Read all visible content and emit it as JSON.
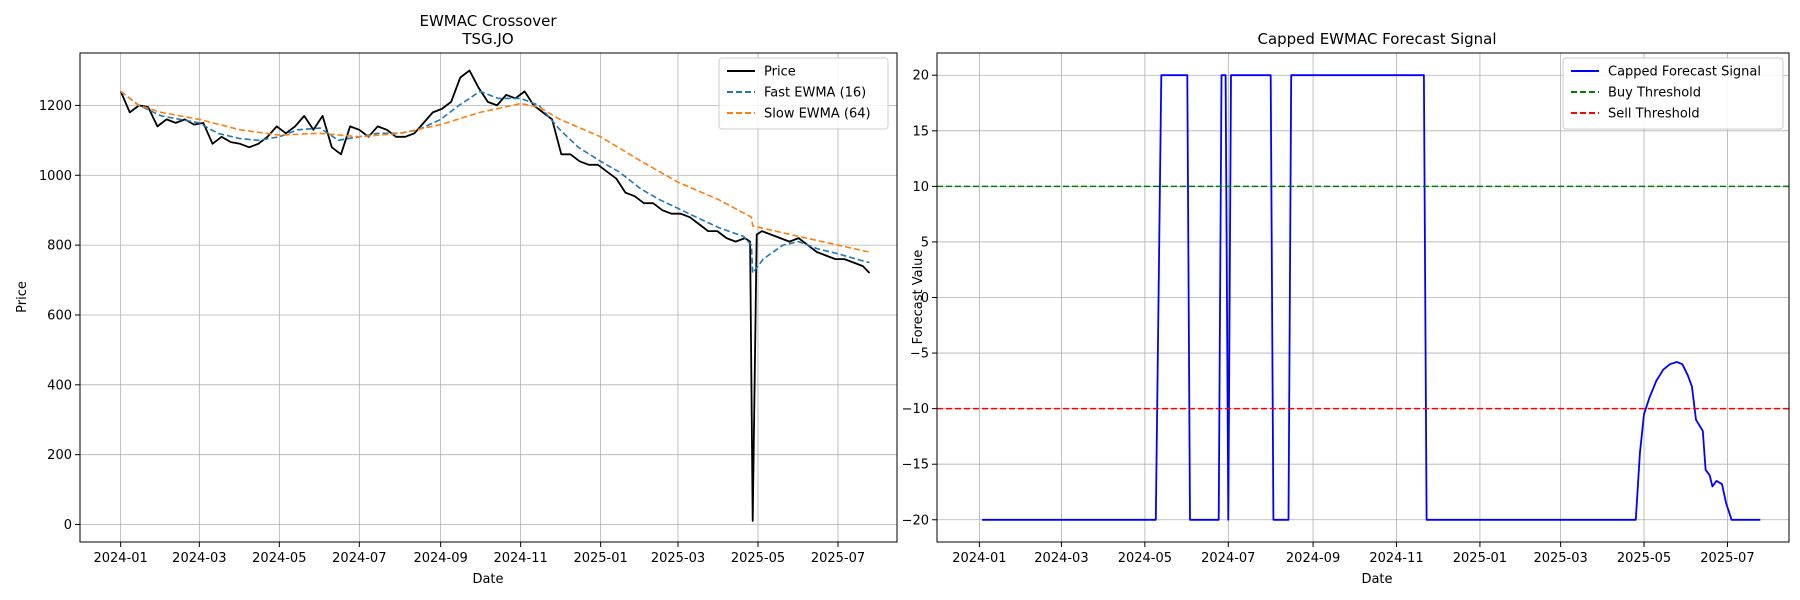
{
  "chart_data": [
    {
      "type": "line",
      "title": "EWMAC Crossover",
      "subtitle": "TSG.JO",
      "xlabel": "Date",
      "ylabel": "Price",
      "xlim": [
        "2023-12-01",
        "2025-08-15"
      ],
      "ylim": [
        -50,
        1350
      ],
      "grid": true,
      "legend": "top-right",
      "x_ticks": [
        "2024-01",
        "2024-03",
        "2024-05",
        "2024-07",
        "2024-09",
        "2024-11",
        "2025-01",
        "2025-03",
        "2025-05",
        "2025-07"
      ],
      "y_ticks": [
        0,
        200,
        400,
        600,
        800,
        1000,
        1200
      ],
      "series": [
        {
          "name": "Price",
          "color": "#000000",
          "dash": "solid",
          "points": [
            [
              "2024-01-01",
              1240
            ],
            [
              "2024-01-08",
              1180
            ],
            [
              "2024-01-15",
              1200
            ],
            [
              "2024-01-22",
              1195
            ],
            [
              "2024-01-29",
              1140
            ],
            [
              "2024-02-05",
              1160
            ],
            [
              "2024-02-12",
              1150
            ],
            [
              "2024-02-19",
              1160
            ],
            [
              "2024-02-26",
              1145
            ],
            [
              "2024-03-04",
              1150
            ],
            [
              "2024-03-11",
              1090
            ],
            [
              "2024-03-18",
              1110
            ],
            [
              "2024-03-25",
              1095
            ],
            [
              "2024-04-01",
              1090
            ],
            [
              "2024-04-08",
              1080
            ],
            [
              "2024-04-15",
              1090
            ],
            [
              "2024-04-22",
              1110
            ],
            [
              "2024-04-29",
              1140
            ],
            [
              "2024-05-06",
              1120
            ],
            [
              "2024-05-13",
              1140
            ],
            [
              "2024-05-20",
              1170
            ],
            [
              "2024-05-27",
              1130
            ],
            [
              "2024-06-03",
              1170
            ],
            [
              "2024-06-10",
              1080
            ],
            [
              "2024-06-17",
              1060
            ],
            [
              "2024-06-24",
              1140
            ],
            [
              "2024-07-01",
              1130
            ],
            [
              "2024-07-08",
              1110
            ],
            [
              "2024-07-15",
              1140
            ],
            [
              "2024-07-22",
              1130
            ],
            [
              "2024-07-29",
              1110
            ],
            [
              "2024-08-05",
              1110
            ],
            [
              "2024-08-12",
              1120
            ],
            [
              "2024-08-19",
              1150
            ],
            [
              "2024-08-26",
              1180
            ],
            [
              "2024-09-02",
              1190
            ],
            [
              "2024-09-09",
              1210
            ],
            [
              "2024-09-16",
              1280
            ],
            [
              "2024-09-23",
              1300
            ],
            [
              "2024-09-30",
              1250
            ],
            [
              "2024-10-07",
              1210
            ],
            [
              "2024-10-14",
              1200
            ],
            [
              "2024-10-21",
              1230
            ],
            [
              "2024-10-28",
              1220
            ],
            [
              "2024-11-04",
              1240
            ],
            [
              "2024-11-11",
              1200
            ],
            [
              "2024-11-18",
              1180
            ],
            [
              "2024-11-25",
              1160
            ],
            [
              "2024-12-02",
              1060
            ],
            [
              "2024-12-09",
              1060
            ],
            [
              "2024-12-16",
              1040
            ],
            [
              "2024-12-23",
              1030
            ],
            [
              "2024-12-30",
              1030
            ],
            [
              "2025-01-06",
              1010
            ],
            [
              "2025-01-13",
              990
            ],
            [
              "2025-01-20",
              950
            ],
            [
              "2025-01-27",
              940
            ],
            [
              "2025-02-03",
              920
            ],
            [
              "2025-02-10",
              920
            ],
            [
              "2025-02-17",
              900
            ],
            [
              "2025-02-24",
              890
            ],
            [
              "2025-03-03",
              890
            ],
            [
              "2025-03-10",
              880
            ],
            [
              "2025-03-17",
              860
            ],
            [
              "2025-03-24",
              840
            ],
            [
              "2025-03-31",
              840
            ],
            [
              "2025-04-07",
              820
            ],
            [
              "2025-04-14",
              810
            ],
            [
              "2025-04-21",
              820
            ],
            [
              "2025-04-25",
              810
            ],
            [
              "2025-04-27",
              10
            ],
            [
              "2025-04-30",
              830
            ],
            [
              "2025-05-04",
              840
            ],
            [
              "2025-05-11",
              830
            ],
            [
              "2025-05-18",
              820
            ],
            [
              "2025-05-25",
              810
            ],
            [
              "2025-06-01",
              820
            ],
            [
              "2025-06-08",
              800
            ],
            [
              "2025-06-15",
              780
            ],
            [
              "2025-06-22",
              770
            ],
            [
              "2025-06-29",
              760
            ],
            [
              "2025-07-06",
              760
            ],
            [
              "2025-07-13",
              750
            ],
            [
              "2025-07-20",
              740
            ],
            [
              "2025-07-25",
              720
            ]
          ]
        },
        {
          "name": "Fast EWMA (16)",
          "color": "#1f77b4",
          "dash": "dashed",
          "points": [
            [
              "2024-01-01",
              1240
            ],
            [
              "2024-01-15",
              1200
            ],
            [
              "2024-02-01",
              1170
            ],
            [
              "2024-03-01",
              1150
            ],
            [
              "2024-03-15",
              1120
            ],
            [
              "2024-04-01",
              1105
            ],
            [
              "2024-04-15",
              1100
            ],
            [
              "2024-05-01",
              1110
            ],
            [
              "2024-05-15",
              1130
            ],
            [
              "2024-06-01",
              1135
            ],
            [
              "2024-06-15",
              1100
            ],
            [
              "2024-07-01",
              1110
            ],
            [
              "2024-07-15",
              1120
            ],
            [
              "2024-08-01",
              1120
            ],
            [
              "2024-08-15",
              1130
            ],
            [
              "2024-09-01",
              1160
            ],
            [
              "2024-09-15",
              1200
            ],
            [
              "2024-10-01",
              1240
            ],
            [
              "2024-10-15",
              1220
            ],
            [
              "2024-11-01",
              1220
            ],
            [
              "2024-11-15",
              1200
            ],
            [
              "2024-12-01",
              1130
            ],
            [
              "2024-12-15",
              1080
            ],
            [
              "2025-01-01",
              1040
            ],
            [
              "2025-01-15",
              1010
            ],
            [
              "2025-02-01",
              960
            ],
            [
              "2025-02-15",
              930
            ],
            [
              "2025-03-01",
              905
            ],
            [
              "2025-03-15",
              880
            ],
            [
              "2025-04-01",
              850
            ],
            [
              "2025-04-20",
              825
            ],
            [
              "2025-04-26",
              800
            ],
            [
              "2025-04-27",
              720
            ],
            [
              "2025-05-05",
              760
            ],
            [
              "2025-05-20",
              800
            ],
            [
              "2025-06-01",
              810
            ],
            [
              "2025-06-15",
              790
            ],
            [
              "2025-07-01",
              775
            ],
            [
              "2025-07-15",
              760
            ],
            [
              "2025-07-25",
              750
            ]
          ]
        },
        {
          "name": "Slow EWMA (64)",
          "color": "#ff7f0e",
          "dash": "dashed",
          "points": [
            [
              "2024-01-01",
              1240
            ],
            [
              "2024-01-15",
              1200
            ],
            [
              "2024-02-01",
              1180
            ],
            [
              "2024-03-01",
              1160
            ],
            [
              "2024-04-01",
              1130
            ],
            [
              "2024-05-01",
              1115
            ],
            [
              "2024-06-01",
              1120
            ],
            [
              "2024-07-01",
              1110
            ],
            [
              "2024-08-01",
              1120
            ],
            [
              "2024-09-01",
              1145
            ],
            [
              "2024-10-01",
              1180
            ],
            [
              "2024-11-01",
              1205
            ],
            [
              "2024-11-15",
              1195
            ],
            [
              "2024-12-01",
              1160
            ],
            [
              "2025-01-01",
              1110
            ],
            [
              "2025-02-01",
              1040
            ],
            [
              "2025-03-01",
              980
            ],
            [
              "2025-04-01",
              930
            ],
            [
              "2025-04-26",
              880
            ],
            [
              "2025-04-27",
              855
            ],
            [
              "2025-06-01",
              825
            ],
            [
              "2025-07-01",
              800
            ],
            [
              "2025-07-25",
              780
            ]
          ]
        }
      ]
    },
    {
      "type": "line",
      "title": "Capped EWMAC Forecast Signal",
      "xlabel": "Date",
      "ylabel": "Forecast Value",
      "xlim": [
        "2023-12-01",
        "2025-08-15"
      ],
      "ylim": [
        -22,
        22
      ],
      "grid": true,
      "legend": "top-right",
      "x_ticks": [
        "2024-01",
        "2024-03",
        "2024-05",
        "2024-07",
        "2024-09",
        "2024-11",
        "2025-01",
        "2025-03",
        "2025-05",
        "2025-07"
      ],
      "y_ticks": [
        -20,
        -15,
        -10,
        -5,
        0,
        5,
        10,
        15,
        20
      ],
      "series": [
        {
          "name": "Capped Forecast Signal",
          "color": "#0000ff",
          "dash": "solid",
          "points": [
            [
              "2024-01-03",
              -20
            ],
            [
              "2024-05-09",
              -20
            ],
            [
              "2024-05-13",
              20
            ],
            [
              "2024-06-01",
              20
            ],
            [
              "2024-06-03",
              -20
            ],
            [
              "2024-06-24",
              -20
            ],
            [
              "2024-06-26",
              20
            ],
            [
              "2024-06-29",
              20
            ],
            [
              "2024-07-01",
              -20
            ],
            [
              "2024-07-03",
              20
            ],
            [
              "2024-08-01",
              20
            ],
            [
              "2024-08-03",
              -20
            ],
            [
              "2024-08-14",
              -20
            ],
            [
              "2024-08-16",
              20
            ],
            [
              "2024-11-21",
              20
            ],
            [
              "2024-11-23",
              -20
            ],
            [
              "2025-04-25",
              -20
            ],
            [
              "2025-04-28",
              -14
            ],
            [
              "2025-05-01",
              -10.5
            ],
            [
              "2025-05-05",
              -9
            ],
            [
              "2025-05-10",
              -7.5
            ],
            [
              "2025-05-15",
              -6.5
            ],
            [
              "2025-05-20",
              -6
            ],
            [
              "2025-05-25",
              -5.8
            ],
            [
              "2025-05-29",
              -6
            ],
            [
              "2025-06-02",
              -7
            ],
            [
              "2025-06-05",
              -8
            ],
            [
              "2025-06-08",
              -11
            ],
            [
              "2025-06-13",
              -12
            ],
            [
              "2025-06-15",
              -15.5
            ],
            [
              "2025-06-18",
              -16
            ],
            [
              "2025-06-20",
              -17
            ],
            [
              "2025-06-23",
              -16.5
            ],
            [
              "2025-06-27",
              -16.8
            ],
            [
              "2025-06-30",
              -18.5
            ],
            [
              "2025-07-04",
              -20
            ],
            [
              "2025-07-25",
              -20
            ]
          ]
        },
        {
          "name": "Buy Threshold",
          "color": "#008000",
          "dash": "dashed",
          "hline": 10
        },
        {
          "name": "Sell Threshold",
          "color": "#ff0000",
          "dash": "dashed",
          "hline": -10
        }
      ]
    }
  ]
}
